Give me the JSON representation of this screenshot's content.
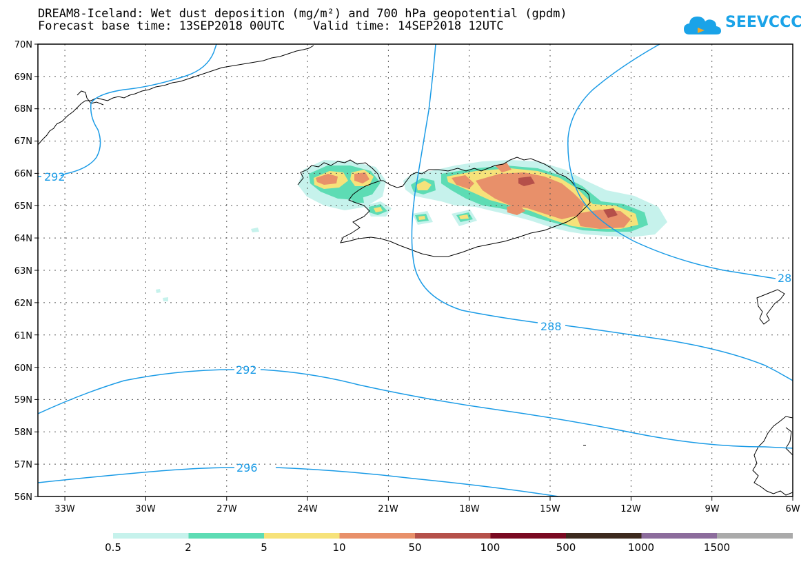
{
  "title": {
    "line1": "DREAM8-Iceland: Wet dust deposition (mg/m²) and 700 hPa geopotential (gpdm)",
    "line2": "Forecast base time: 13SEP2018 00UTC    Valid time: 14SEP2018 12UTC"
  },
  "logo": {
    "text": "SEEVCCC",
    "icon": "cloud-icon",
    "color": "#1aa3e8"
  },
  "map": {
    "lon_range": [
      -34,
      -6
    ],
    "lat_range": [
      56,
      70
    ],
    "lat_labels": [
      "70N",
      "69N",
      "68N",
      "67N",
      "66N",
      "65N",
      "64N",
      "63N",
      "62N",
      "61N",
      "60N",
      "59N",
      "58N",
      "57N",
      "56N"
    ],
    "lon_labels": [
      "33W",
      "30W",
      "27W",
      "24W",
      "21W",
      "18W",
      "15W",
      "12W",
      "9W",
      "6W"
    ],
    "contour_color": "#1a9be6",
    "contour_labels": [
      "292",
      "292",
      "296",
      "288",
      "28"
    ]
  },
  "colorbar": {
    "labels": [
      "0.5",
      "2",
      "5",
      "10",
      "50",
      "100",
      "500",
      "1000",
      "1500"
    ],
    "colors": [
      "#c6f2ec",
      "#5ddcb4",
      "#f6e27a",
      "#e8906a",
      "#b5504a",
      "#7a0a22",
      "#3d2a1e",
      "#8c6c9c",
      "#aaaaaa"
    ]
  }
}
